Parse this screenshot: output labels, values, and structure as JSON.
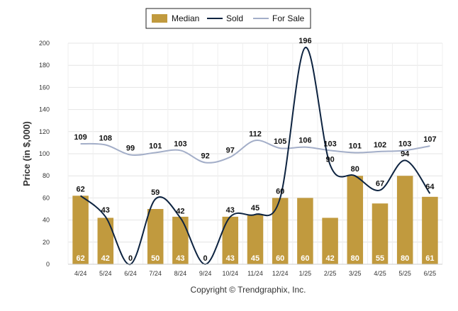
{
  "chart_data": {
    "type": "bar",
    "categories": [
      "4/24",
      "5/24",
      "6/24",
      "7/24",
      "8/24",
      "9/24",
      "10/24",
      "11/24",
      "12/24",
      "1/25",
      "2/25",
      "3/25",
      "4/25",
      "5/25",
      "6/25"
    ],
    "series": [
      {
        "name": "Median",
        "type": "bar",
        "color": "#C19A3E",
        "values": [
          62,
          42,
          0,
          50,
          43,
          0,
          43,
          45,
          60,
          60,
          42,
          80,
          55,
          80,
          61
        ]
      },
      {
        "name": "Sold",
        "type": "line",
        "color": "#0D2340",
        "values": [
          62,
          43,
          0,
          59,
          42,
          0,
          43,
          45,
          60,
          196,
          90,
          80,
          67,
          94,
          64
        ]
      },
      {
        "name": "For Sale",
        "type": "line",
        "color": "#A3AEC8",
        "values": [
          109,
          108,
          99,
          101,
          103,
          92,
          97,
          112,
          105,
          106,
          103,
          101,
          102,
          103,
          107
        ]
      }
    ],
    "ylabel": "Price (in $,000)",
    "ylim": [
      0,
      200
    ],
    "yticks": [
      0,
      20,
      40,
      60,
      80,
      100,
      120,
      140,
      160,
      180,
      200
    ],
    "grid": true,
    "legend_position": "top-center"
  },
  "footer": {
    "copyright": "Copyright © Trendgraphix, Inc."
  }
}
